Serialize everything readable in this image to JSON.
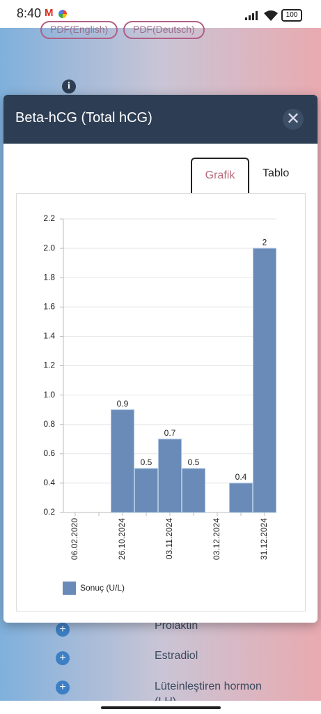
{
  "status_bar": {
    "time": "8:40",
    "battery": "100"
  },
  "background": {
    "buttons": [
      "PDF(English)",
      "PDF(Deutsch)"
    ],
    "list": [
      "Prolaktin",
      "Estradiol",
      "Lüteinleştiren hormon (LH)"
    ]
  },
  "modal": {
    "title": "Beta-hCG (Total hCG)",
    "tabs": [
      "Grafik",
      "Tablo"
    ]
  },
  "chart_data": {
    "type": "bar",
    "categories": [
      "06.02.2020",
      null,
      "26.10.2024",
      null,
      "03.11.2024",
      null,
      "03.12.2024",
      null,
      "31.12.2024"
    ],
    "series": [
      {
        "name": "Sonuç (U/L)",
        "color": "#6a8bb8",
        "values": [
          null,
          null,
          0.9,
          0.5,
          0.7,
          0.5,
          null,
          0.4,
          2
        ]
      }
    ],
    "ylim": [
      0.2,
      2.2
    ],
    "yticks": [
      0.2,
      0.4,
      0.6,
      0.8,
      {
        "value": 1,
        "label": "1.0"
      },
      1.2,
      1.4,
      1.6,
      1.8,
      {
        "value": 2,
        "label": "2.0"
      },
      2.2
    ],
    "grid": true,
    "legend": "bottom-left"
  }
}
